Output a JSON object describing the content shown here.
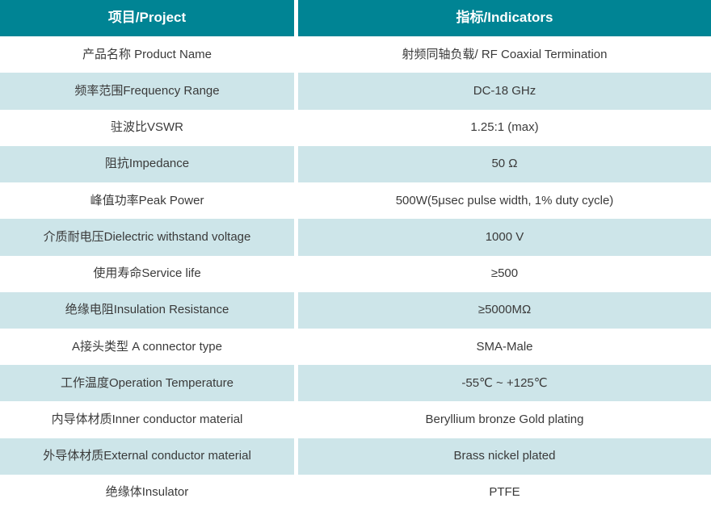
{
  "colors": {
    "header_bg": "#008494",
    "header_text": "#ffffff",
    "row_alt_bg": "#cde5e9",
    "row_bg": "#ffffff",
    "body_text": "#3a3a3a"
  },
  "table": {
    "header": {
      "project": "项目/Project",
      "indicators": "指标/Indicators"
    },
    "rows": [
      {
        "label": "产品名称 Product Name",
        "value": "射频同轴负载/ RF Coaxial Termination"
      },
      {
        "label": "频率范围Frequency Range",
        "value": "DC-18 GHz"
      },
      {
        "label": "驻波比VSWR",
        "value": "1.25:1 (max)"
      },
      {
        "label": "阻抗Impedance",
        "value": "50 Ω"
      },
      {
        "label": "峰值功率Peak Power",
        "value": "500W(5μsec pulse width, 1% duty cycle)"
      },
      {
        "label": "介质耐电压Dielectric withstand voltage",
        "value": "1000 V"
      },
      {
        "label": "使用寿命Service life",
        "value": "≥500"
      },
      {
        "label": "绝缘电阻Insulation Resistance",
        "value": "≥5000MΩ"
      },
      {
        "label": "A接头类型 A connector type",
        "value": "SMA-Male"
      },
      {
        "label": "工作温度Operation Temperature",
        "value": "-55℃ ~ +125℃"
      },
      {
        "label": "内导体材质Inner conductor material",
        "value": "Beryllium bronze Gold plating"
      },
      {
        "label": "外导体材质External conductor material",
        "value": "Brass nickel plated"
      },
      {
        "label": "绝缘体Insulator",
        "value": "PTFE"
      }
    ]
  }
}
